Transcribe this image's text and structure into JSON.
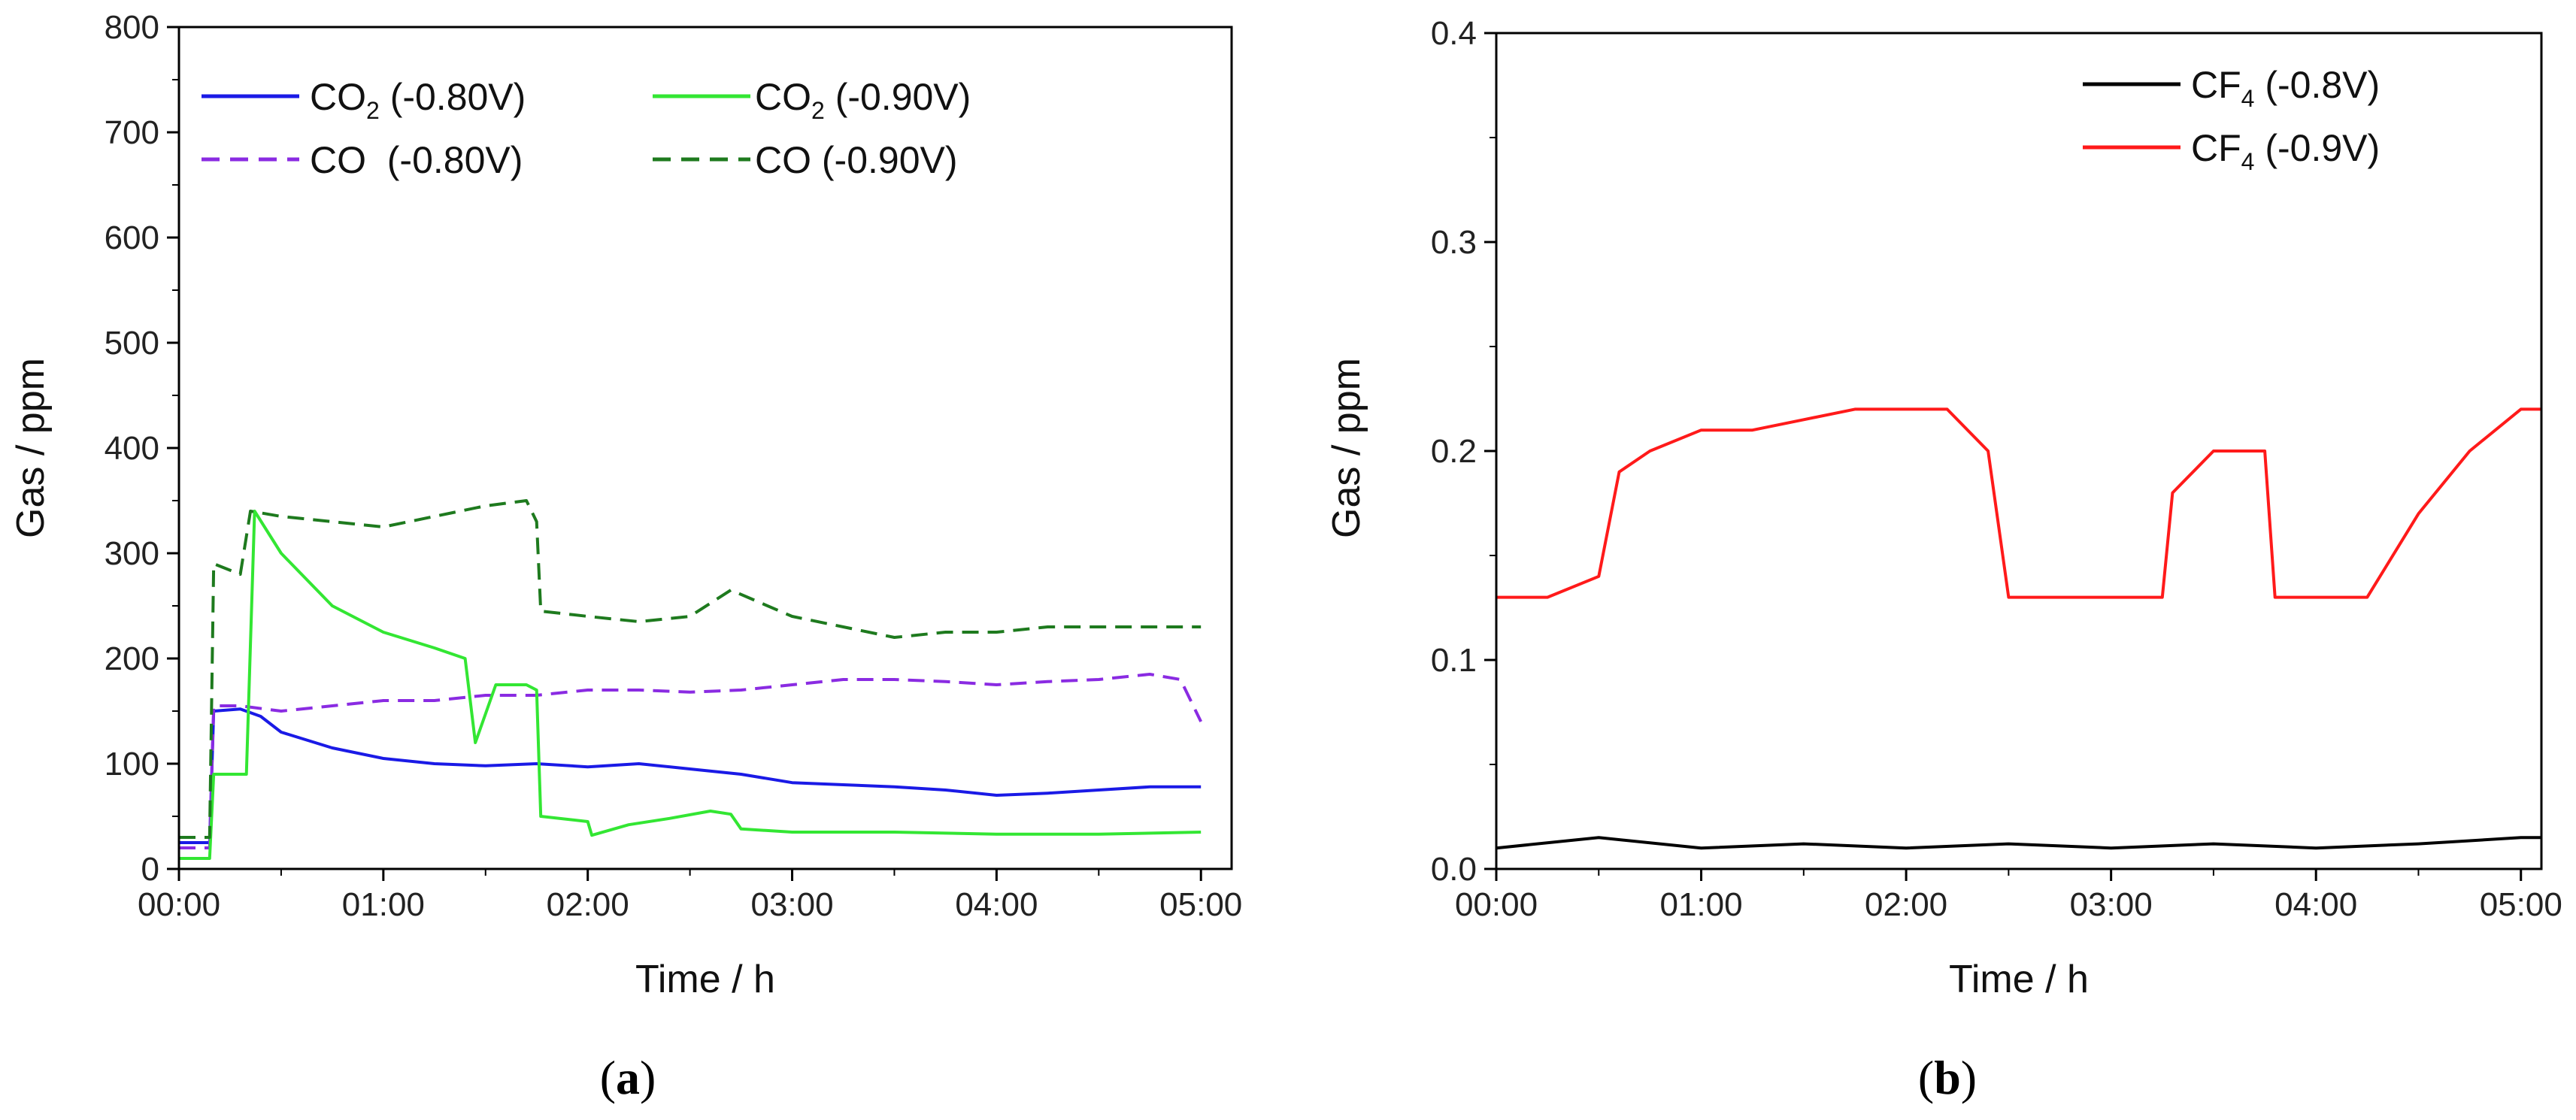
{
  "chart_data": [
    {
      "type": "line",
      "panel": "a",
      "caption_open": "(",
      "caption_letter": "a",
      "caption_close": ")",
      "xlabel": "Time / h",
      "ylabel": "Gas / ppm",
      "xlim_hours": [
        0,
        5.15
      ],
      "ylim": [
        0,
        800
      ],
      "x_tick_labels": [
        "00:00",
        "01:00",
        "02:00",
        "03:00",
        "04:00",
        "05:00"
      ],
      "x_tick_values": [
        0,
        1,
        2,
        3,
        4,
        5
      ],
      "y_tick_labels": [
        "0",
        "100",
        "200",
        "300",
        "400",
        "500",
        "600",
        "700",
        "800"
      ],
      "y_tick_values": [
        0,
        100,
        200,
        300,
        400,
        500,
        600,
        700,
        800
      ],
      "legend_placement": "top-left",
      "series": [
        {
          "name": "CO2 (-0.80V)",
          "label_main": "CO",
          "label_sub": "2",
          "label_rest": " (-0.80V)",
          "color": "#1a1ae6",
          "dash": "solid",
          "x": [
            0,
            0.15,
            0.17,
            0.3,
            0.4,
            0.5,
            0.75,
            1.0,
            1.25,
            1.5,
            1.75,
            2.0,
            2.25,
            2.5,
            2.75,
            3.0,
            3.25,
            3.5,
            3.75,
            4.0,
            4.25,
            4.5,
            4.75,
            5.0
          ],
          "values": [
            25,
            25,
            150,
            152,
            145,
            130,
            115,
            105,
            100,
            98,
            100,
            97,
            100,
            95,
            90,
            82,
            80,
            78,
            75,
            70,
            72,
            75,
            78,
            78
          ]
        },
        {
          "name": "CO (-0.80V)",
          "label_main": "CO",
          "label_sub": "",
          "label_rest": "  (-0.80V)",
          "color": "#8a2be2",
          "dash": "dashed",
          "x": [
            0,
            0.15,
            0.17,
            0.3,
            0.5,
            0.75,
            1.0,
            1.25,
            1.5,
            1.75,
            2.0,
            2.25,
            2.5,
            2.75,
            3.0,
            3.25,
            3.5,
            3.75,
            4.0,
            4.25,
            4.5,
            4.75,
            4.9,
            5.0
          ],
          "values": [
            20,
            20,
            155,
            155,
            150,
            155,
            160,
            160,
            165,
            165,
            170,
            170,
            168,
            170,
            175,
            180,
            180,
            178,
            175,
            178,
            180,
            185,
            180,
            140
          ]
        },
        {
          "name": "CO2 (-0.90V)",
          "label_main": "CO",
          "label_sub": "2",
          "label_rest": " (-0.90V)",
          "color": "#33e633",
          "dash": "solid",
          "x": [
            0,
            0.15,
            0.17,
            0.33,
            0.37,
            0.5,
            0.75,
            1.0,
            1.25,
            1.4,
            1.45,
            1.55,
            1.7,
            1.75,
            1.77,
            2.0,
            2.02,
            2.2,
            2.4,
            2.6,
            2.7,
            2.75,
            3.0,
            3.5,
            4.0,
            4.5,
            5.0
          ],
          "values": [
            10,
            10,
            90,
            90,
            340,
            300,
            250,
            225,
            210,
            200,
            120,
            175,
            175,
            170,
            50,
            45,
            32,
            42,
            48,
            55,
            52,
            38,
            35,
            35,
            33,
            33,
            35
          ]
        },
        {
          "name": "CO (-0.90V)",
          "label_main": "CO",
          "label_sub": "",
          "label_rest": "  (-0.90V)",
          "color": "#1e7a1e",
          "dash": "dashed",
          "x": [
            0,
            0.15,
            0.17,
            0.3,
            0.35,
            0.5,
            0.75,
            1.0,
            1.25,
            1.5,
            1.7,
            1.75,
            1.77,
            2.0,
            2.25,
            2.5,
            2.7,
            3.0,
            3.25,
            3.5,
            3.75,
            4.0,
            4.25,
            4.5,
            4.75,
            5.0
          ],
          "values": [
            30,
            30,
            290,
            280,
            340,
            335,
            330,
            325,
            335,
            345,
            350,
            330,
            245,
            240,
            235,
            240,
            265,
            240,
            230,
            220,
            225,
            225,
            230,
            230,
            230,
            230
          ]
        }
      ]
    },
    {
      "type": "line",
      "panel": "b",
      "caption_open": "(",
      "caption_letter": "b",
      "caption_close": ")",
      "xlabel": "Time / h",
      "ylabel": "Gas / ppm",
      "xlim_hours": [
        0,
        5.1
      ],
      "ylim": [
        0,
        0.4
      ],
      "x_tick_labels": [
        "00:00",
        "01:00",
        "02:00",
        "03:00",
        "04:00",
        "05:00"
      ],
      "x_tick_values": [
        0,
        1,
        2,
        3,
        4,
        5
      ],
      "y_tick_labels": [
        "0.0",
        "0.1",
        "0.2",
        "0.3",
        "0.4"
      ],
      "y_tick_values": [
        0,
        0.1,
        0.2,
        0.3,
        0.4
      ],
      "legend_placement": "top-right",
      "series": [
        {
          "name": "CF4 (-0.8V)",
          "label_main": "CF",
          "label_sub": "4",
          "label_rest": " (-0.8V)",
          "color": "#000000",
          "dash": "solid",
          "x": [
            0,
            0.5,
            1.0,
            1.5,
            2.0,
            2.5,
            3.0,
            3.5,
            4.0,
            4.5,
            5.0,
            5.1
          ],
          "values": [
            0.01,
            0.015,
            0.01,
            0.012,
            0.01,
            0.012,
            0.01,
            0.012,
            0.01,
            0.012,
            0.015,
            0.015
          ]
        },
        {
          "name": "CF4 (-0.9V)",
          "label_main": "CF",
          "label_sub": "4",
          "label_rest": " (-0.9V)",
          "color": "#ff1a1a",
          "dash": "solid",
          "x": [
            0,
            0.25,
            0.5,
            0.6,
            0.75,
            1.0,
            1.25,
            1.5,
            1.75,
            2.0,
            2.2,
            2.4,
            2.5,
            2.75,
            3.0,
            3.25,
            3.3,
            3.5,
            3.75,
            3.8,
            4.0,
            4.25,
            4.5,
            4.75,
            5.0,
            5.1
          ],
          "values": [
            0.13,
            0.13,
            0.14,
            0.19,
            0.2,
            0.21,
            0.21,
            0.215,
            0.22,
            0.22,
            0.22,
            0.2,
            0.13,
            0.13,
            0.13,
            0.13,
            0.18,
            0.2,
            0.2,
            0.13,
            0.13,
            0.13,
            0.17,
            0.2,
            0.22,
            0.22
          ]
        }
      ]
    }
  ]
}
